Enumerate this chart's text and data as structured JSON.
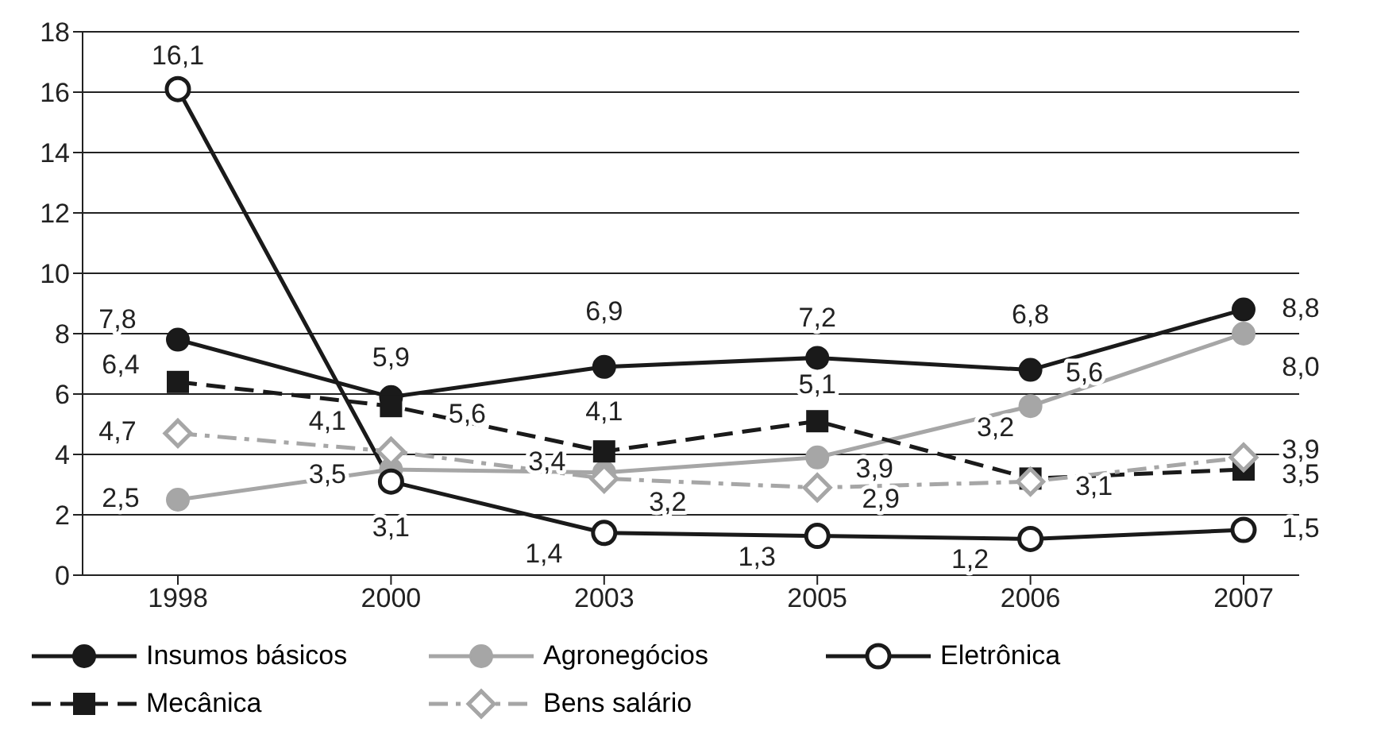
{
  "chart_data": {
    "type": "line",
    "categories": [
      "1998",
      "2000",
      "2003",
      "2005",
      "2006",
      "2007"
    ],
    "series": [
      {
        "name": "Insumos básicos",
        "color": "#1a1a1a",
        "marker": "circle",
        "line_style": "solid",
        "values": [
          7.8,
          5.9,
          6.9,
          7.2,
          6.8,
          8.8
        ],
        "value_labels": [
          "7,8",
          "5,9",
          "6,9",
          "7,2",
          "6,8",
          "8,8"
        ]
      },
      {
        "name": "Agronegócios",
        "color": "#a6a6a6",
        "marker": "circle",
        "line_style": "solid",
        "values": [
          2.5,
          3.5,
          3.4,
          3.9,
          5.6,
          8.0
        ],
        "value_labels": [
          "2,5",
          "3,5",
          "3,4",
          "3,9",
          "5,6",
          "8,0"
        ]
      },
      {
        "name": "Eletrônica",
        "color": "#1a1a1a",
        "marker": "circle-open",
        "line_style": "solid",
        "values": [
          16.1,
          3.1,
          1.4,
          1.3,
          1.2,
          1.5
        ],
        "value_labels": [
          "16,1",
          "3,1",
          "1,4",
          "1,3",
          "1,2",
          "1,5"
        ]
      },
      {
        "name": "Mecânica",
        "color": "#1a1a1a",
        "marker": "square",
        "line_style": "dashed",
        "values": [
          6.4,
          5.6,
          4.1,
          5.1,
          3.2,
          3.5
        ],
        "value_labels": [
          "6,4",
          "5,6",
          "4,1",
          "5,1",
          "3,2",
          "3,5"
        ]
      },
      {
        "name": "Bens salário",
        "color": "#a6a6a6",
        "marker": "diamond",
        "line_style": "dashdot",
        "values": [
          4.7,
          4.1,
          3.2,
          2.9,
          3.1,
          3.9
        ],
        "value_labels": [
          "4,7",
          "4,1",
          "3,2",
          "2,9",
          "3,1",
          "3,9"
        ]
      }
    ],
    "ylim": [
      0,
      18
    ],
    "yticks": [
      0,
      2,
      4,
      6,
      8,
      10,
      12,
      14,
      16,
      18
    ],
    "grid": "y",
    "legend": "bottom"
  }
}
